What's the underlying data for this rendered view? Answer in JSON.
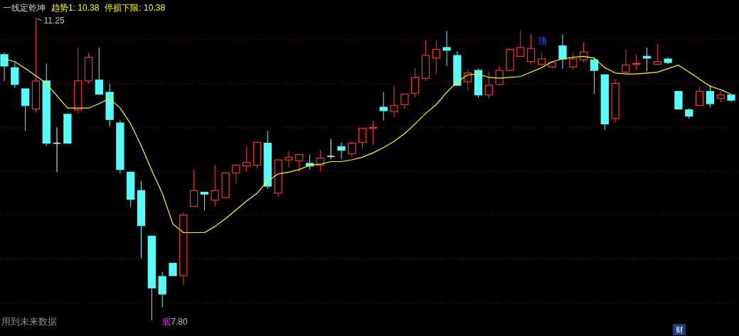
{
  "chart_data": {
    "type": "candlestick",
    "title": "一线定乾坤",
    "categories": [
      null,
      null,
      null,
      null,
      null,
      null,
      null,
      null,
      null,
      null,
      null,
      null,
      null,
      null,
      null,
      null,
      null,
      null,
      null,
      null,
      null,
      null,
      null,
      null,
      null,
      null,
      null,
      null,
      null,
      null,
      null,
      null,
      null,
      null,
      null,
      null,
      null,
      null,
      null,
      null,
      null,
      null,
      null,
      null,
      null,
      null,
      null,
      null,
      null,
      null,
      null,
      null,
      null,
      null,
      null,
      null,
      null,
      null,
      null,
      null,
      null,
      null,
      null,
      null,
      null,
      null,
      null,
      null,
      null,
      null
    ],
    "ohlc": [
      [
        10.83,
        10.85,
        10.53,
        10.7
      ],
      [
        10.68,
        10.74,
        10.45,
        10.49
      ],
      [
        10.44,
        10.44,
        9.96,
        10.25
      ],
      [
        10.21,
        11.25,
        10.17,
        10.53
      ],
      [
        10.53,
        10.73,
        9.79,
        9.82
      ],
      [
        9.82,
        10.0,
        9.49,
        9.82
      ],
      [
        10.15,
        10.15,
        9.82,
        9.82
      ],
      [
        10.2,
        10.91,
        10.16,
        10.53
      ],
      [
        10.53,
        10.85,
        10.5,
        10.8
      ],
      [
        10.54,
        10.91,
        10.37,
        10.38
      ],
      [
        10.4,
        10.5,
        10.01,
        10.09
      ],
      [
        10.05,
        10.08,
        9.47,
        9.52
      ],
      [
        9.49,
        9.49,
        9.09,
        9.18
      ],
      [
        9.28,
        9.39,
        8.51,
        8.88
      ],
      [
        8.76,
        8.76,
        7.8,
        8.17
      ],
      [
        8.3,
        8.35,
        7.95,
        8.1
      ],
      [
        8.45,
        8.45,
        8.31,
        8.31
      ],
      [
        8.31,
        9.03,
        8.2,
        9.0
      ],
      [
        9.1,
        9.52,
        9.1,
        9.28
      ],
      [
        9.26,
        9.26,
        9.05,
        9.24
      ],
      [
        9.17,
        9.57,
        9.1,
        9.28
      ],
      [
        9.2,
        9.48,
        9.2,
        9.48
      ],
      [
        9.48,
        9.57,
        9.36,
        9.57
      ],
      [
        9.56,
        9.78,
        9.5,
        9.6
      ],
      [
        9.57,
        9.83,
        9.53,
        9.83
      ],
      [
        9.82,
        9.96,
        9.3,
        9.33
      ],
      [
        9.25,
        9.63,
        9.21,
        9.63
      ],
      [
        9.63,
        9.73,
        9.54,
        9.66
      ],
      [
        9.62,
        9.69,
        9.49,
        9.69
      ],
      [
        9.59,
        9.69,
        9.52,
        9.56
      ],
      [
        9.57,
        9.74,
        9.5,
        9.65
      ],
      [
        9.67,
        9.87,
        9.64,
        9.67
      ],
      [
        9.78,
        9.83,
        9.64,
        9.74
      ],
      [
        9.7,
        9.84,
        9.66,
        9.82
      ],
      [
        9.83,
        9.99,
        9.76,
        9.99
      ],
      [
        9.99,
        10.08,
        9.8,
        10.0
      ],
      [
        10.23,
        10.4,
        10.08,
        10.19
      ],
      [
        10.18,
        10.47,
        10.12,
        10.25
      ],
      [
        10.26,
        10.38,
        10.21,
        10.38
      ],
      [
        10.39,
        10.68,
        10.34,
        10.57
      ],
      [
        10.56,
        10.99,
        10.53,
        10.82
      ],
      [
        10.79,
        10.99,
        10.61,
        10.89
      ],
      [
        10.91,
        11.1,
        10.7,
        10.88
      ],
      [
        10.82,
        10.87,
        10.48,
        10.48
      ],
      [
        10.52,
        10.67,
        10.42,
        10.62
      ],
      [
        10.65,
        10.67,
        10.34,
        10.37
      ],
      [
        10.37,
        10.63,
        10.33,
        10.48
      ],
      [
        10.49,
        10.7,
        10.49,
        10.65
      ],
      [
        10.65,
        10.9,
        10.65,
        10.89
      ],
      [
        10.81,
        11.1,
        10.81,
        10.91
      ],
      [
        10.75,
        11.06,
        10.72,
        10.9
      ],
      [
        10.72,
        10.85,
        10.7,
        10.78
      ],
      [
        10.69,
        10.74,
        10.67,
        10.74
      ],
      [
        10.93,
        11.06,
        10.67,
        10.78
      ],
      [
        10.69,
        10.85,
        10.66,
        10.78
      ],
      [
        10.77,
        10.97,
        10.74,
        10.86
      ],
      [
        10.77,
        10.79,
        10.38,
        10.65
      ],
      [
        10.6,
        10.6,
        9.97,
        10.04
      ],
      [
        10.1,
        10.55,
        10.05,
        10.5
      ],
      [
        10.63,
        10.89,
        10.63,
        10.71
      ],
      [
        10.72,
        10.83,
        10.65,
        10.73
      ],
      [
        10.81,
        10.91,
        10.64,
        10.79
      ],
      [
        10.72,
        10.95,
        10.72,
        10.75
      ],
      [
        10.78,
        10.8,
        10.72,
        10.74
      ],
      [
        10.41,
        10.41,
        10.21,
        10.21
      ],
      [
        10.2,
        10.22,
        10.1,
        10.13
      ],
      [
        10.25,
        10.46,
        10.25,
        10.41
      ],
      [
        10.41,
        10.48,
        10.23,
        10.27
      ],
      [
        10.33,
        10.41,
        10.29,
        10.37
      ],
      [
        10.37,
        10.37,
        10.29,
        10.31
      ]
    ],
    "colors": [
      "#54ffff",
      "#54ffff",
      "#54ffff",
      "#ff3232",
      "#54ffff",
      "#ffffff",
      "#54ffff",
      "#ff3232",
      "#ff3232",
      "#54ffff",
      "#54ffff",
      "#54ffff",
      "#54ffff",
      "#54ffff",
      "#54ffff",
      "#54ffff",
      "#54ffff",
      "#ff3232",
      "#ff3232",
      "#54ffff",
      "#ff3232",
      "#ff3232",
      "#ff3232",
      "#ff3232",
      "#ff3232",
      "#54ffff",
      "#ff3232",
      "#ff3232",
      "#ff3232",
      "#54ffff",
      "#ff3232",
      "#ffffff",
      "#54ffff",
      "#ff3232",
      "#ff3232",
      "#ff3232",
      "#54ffff",
      "#ff3232",
      "#ff3232",
      "#ff3232",
      "#ff3232",
      "#ff3232",
      "#54ffff",
      "#54ffff",
      "#ff3232",
      "#54ffff",
      "#ff3232",
      "#ff3232",
      "#ff3232",
      "#ff3232",
      "#ff3232",
      "#ff3232",
      "#ff3232",
      "#54ffff",
      "#ff3232",
      "#ff3232",
      "#54ffff",
      "#54ffff",
      "#ff3232",
      "#ff3232",
      "#ff3232",
      "#54ffff",
      "#ff3232",
      "#54ffff",
      "#54ffff",
      "#54ffff",
      "#ff3232",
      "#54ffff",
      "#ff3232",
      "#54ffff"
    ],
    "series": [
      {
        "name": "趋势1: 10.38",
        "type": "line",
        "color": "#ffff00",
        "values": [
          10.78,
          10.75,
          10.67,
          10.59,
          10.5,
          10.36,
          10.22,
          10.22,
          10.22,
          10.27,
          10.33,
          10.22,
          10.04,
          9.79,
          9.51,
          9.25,
          8.9,
          8.8,
          8.8,
          8.8,
          8.87,
          8.96,
          9.06,
          9.16,
          9.25,
          9.39,
          9.47,
          9.49,
          9.52,
          9.57,
          9.58,
          9.61,
          9.61,
          9.63,
          9.66,
          9.71,
          9.77,
          9.84,
          9.93,
          10.04,
          10.16,
          10.26,
          10.4,
          10.52,
          10.6,
          10.61,
          10.57,
          10.56,
          10.57,
          10.58,
          10.63,
          10.68,
          10.75,
          10.78,
          10.8,
          10.81,
          10.79,
          10.68,
          10.62,
          10.61,
          10.61,
          10.62,
          10.63,
          10.67,
          10.71,
          10.63,
          10.55,
          10.47,
          10.43,
          10.38
        ]
      }
    ],
    "yticks": [
      {
        "value": 8.0,
        "label": null
      },
      {
        "value": 8.5,
        "label": null
      },
      {
        "value": 9.0,
        "label": null
      },
      {
        "value": 9.5,
        "label": null
      },
      {
        "value": 10.0,
        "label": null
      },
      {
        "value": 10.5,
        "label": null
      },
      {
        "value": 11.0,
        "label": null
      }
    ],
    "grid": "y",
    "legend": "top left",
    "annotations": [
      "11.25",
      "7.80",
      "顶",
      "底",
      "停损下限: 10.38",
      "用到未来数据",
      "财"
    ]
  }
}
